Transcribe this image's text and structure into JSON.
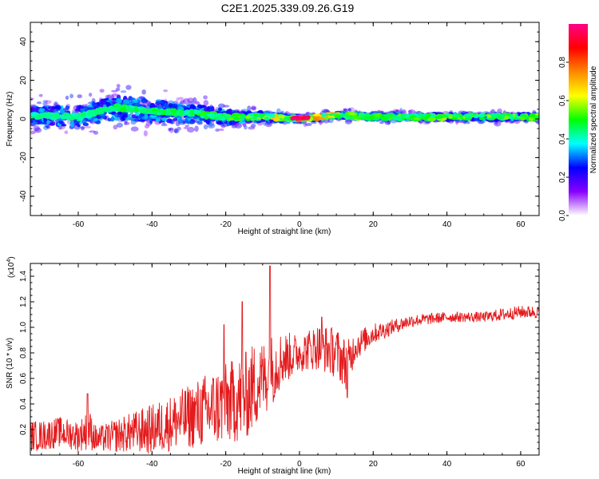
{
  "title": "C2E1.2025.339.09.26.G19",
  "chart_data": [
    {
      "type": "heatmap",
      "panel": "spectrogram",
      "xlabel": "Height of straight line (km)",
      "ylabel": "Frequency (Hz)",
      "xlim": [
        -73,
        65
      ],
      "ylim": [
        -50,
        50
      ],
      "x_ticks": [
        "-60",
        "-40",
        "-20",
        "0",
        "20",
        "40",
        "60"
      ],
      "y_ticks": [
        "-40",
        "-20",
        "0",
        "20",
        "40"
      ],
      "colorbar": {
        "label": "Normalized spectral amplitude",
        "range": [
          0,
          1
        ],
        "ticks": [
          "0.0",
          "0.2",
          "0.4",
          "0.6",
          "0.8"
        ],
        "colors": [
          "#ffffff",
          "#8800ff",
          "#0000ff",
          "#00ffff",
          "#00ff00",
          "#ffff00",
          "#ff8800",
          "#ff0000",
          "#ff0088"
        ]
      },
      "ridge": {
        "x": [
          -72,
          -60,
          -50,
          -40,
          -30,
          -20,
          -10,
          0,
          10,
          20,
          30,
          40,
          50,
          60,
          65
        ],
        "center_hz": [
          2,
          1,
          6,
          4,
          3,
          1,
          1,
          0,
          2,
          1,
          1,
          1,
          1,
          1,
          1
        ],
        "spread_hz": [
          10,
          11,
          13,
          12,
          10,
          8,
          5,
          3,
          3,
          3,
          3,
          3,
          3,
          3,
          3
        ],
        "peak_amplitude": [
          0.45,
          0.45,
          0.5,
          0.5,
          0.5,
          0.55,
          0.6,
          0.95,
          0.7,
          0.55,
          0.55,
          0.6,
          0.6,
          0.6,
          0.6
        ]
      }
    },
    {
      "type": "line",
      "panel": "snr",
      "xlabel": "Height of straight line (km)",
      "ylabel": "SNR (10 * v/v)",
      "scale_note": "(x10",
      "scale_exp": "4",
      "scale_close": ")",
      "xlim": [
        -73,
        65
      ],
      "ylim": [
        0,
        1.5
      ],
      "x_ticks": [
        "-60",
        "-40",
        "-20",
        "0",
        "20",
        "40",
        "60"
      ],
      "y_ticks": [
        "0.2",
        "0.4",
        "0.6",
        "0.8",
        "1.0",
        "1.2",
        "1.4"
      ],
      "series": [
        {
          "name": "SNR",
          "color": "#e41a1c",
          "x": [
            -73,
            -70,
            -65,
            -60,
            -57,
            -55,
            -50,
            -45,
            -40,
            -35,
            -30,
            -25,
            -20,
            -15,
            -12,
            -10,
            -8,
            -5,
            0,
            5,
            10,
            13,
            15,
            20,
            25,
            30,
            40,
            50,
            55,
            60,
            65
          ],
          "mean": [
            0.15,
            0.15,
            0.18,
            0.15,
            0.2,
            0.12,
            0.15,
            0.18,
            0.2,
            0.25,
            0.3,
            0.35,
            0.4,
            0.45,
            0.55,
            0.6,
            0.65,
            0.75,
            0.8,
            0.85,
            0.8,
            0.7,
            0.85,
            0.95,
            1.0,
            1.05,
            1.08,
            1.08,
            1.1,
            1.12,
            1.12
          ],
          "noise": [
            0.12,
            0.12,
            0.12,
            0.12,
            0.16,
            0.1,
            0.13,
            0.16,
            0.2,
            0.22,
            0.25,
            0.3,
            0.32,
            0.35,
            0.35,
            0.3,
            0.3,
            0.22,
            0.15,
            0.18,
            0.2,
            0.2,
            0.12,
            0.08,
            0.06,
            0.05,
            0.04,
            0.04,
            0.05,
            0.05,
            0.05
          ],
          "peaks": [
            {
              "x": -57.5,
              "y": 0.48
            },
            {
              "x": -20.5,
              "y": 1.02
            },
            {
              "x": -15.5,
              "y": 1.2
            },
            {
              "x": -8.0,
              "y": 1.48
            },
            {
              "x": 6.0,
              "y": 1.08
            },
            {
              "x": 13.0,
              "y": 0.45
            }
          ]
        }
      ]
    }
  ]
}
